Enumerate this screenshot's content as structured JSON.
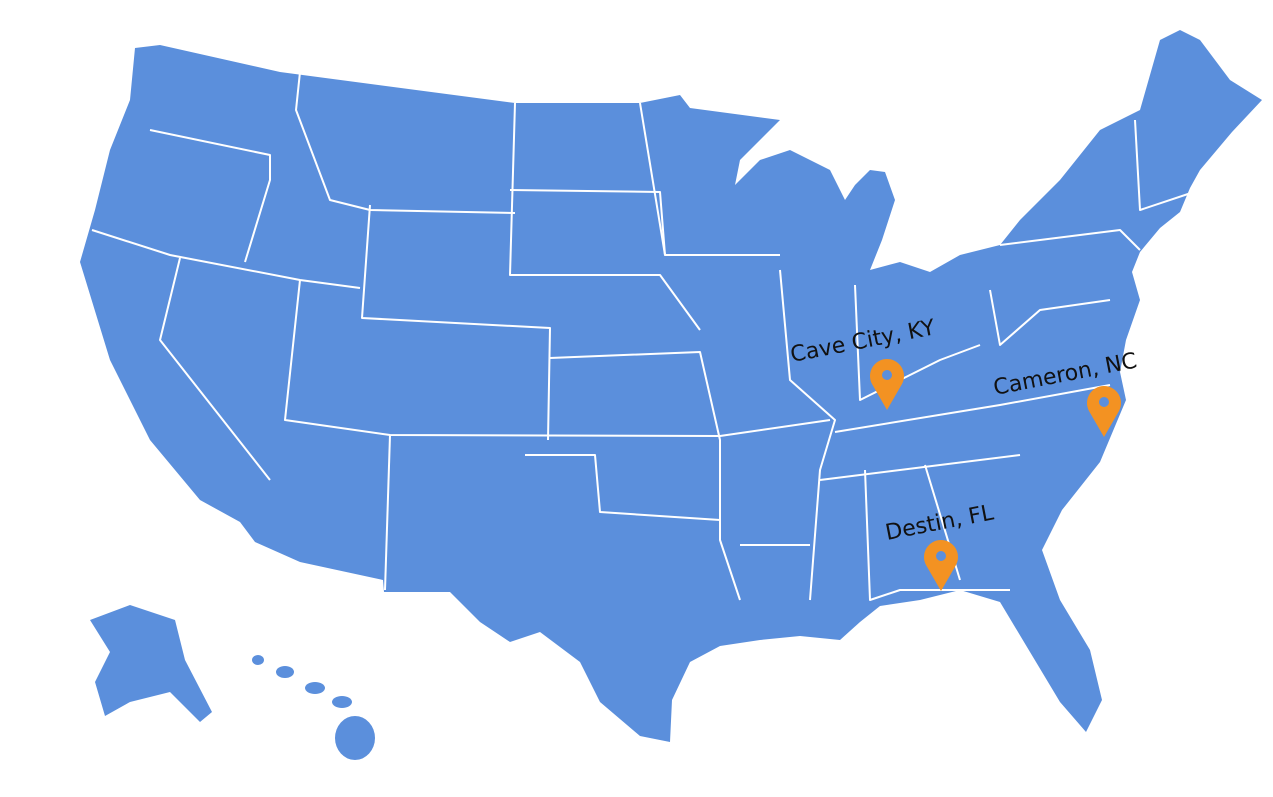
{
  "map": {
    "land_color": "#5b8fdc",
    "border_color": "#ffffff",
    "pin_color": "#f39222"
  },
  "markers": [
    {
      "label": "Cave City, KY",
      "icon": "map-pin-icon"
    },
    {
      "label": "Cameron, NC",
      "icon": "map-pin-icon"
    },
    {
      "label": "Destin, FL",
      "icon": "map-pin-icon"
    }
  ]
}
